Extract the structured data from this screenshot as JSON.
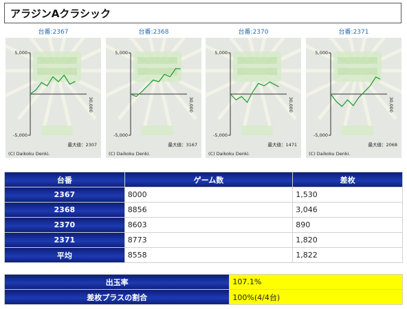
{
  "page_title": "アラジンAクラシック",
  "machines": [
    {
      "label": "台番:2367",
      "y_top": "5,000",
      "y_mid": "0",
      "y_bottom": "-5,000",
      "x_end": "30,000",
      "max_text": "最大値：2307",
      "copyright": "(C) Daikoku Denki.",
      "chart_data": {
        "type": "line",
        "ylim": [
          -5000,
          5000
        ],
        "xlim": [
          0,
          30000
        ],
        "x": [
          0,
          1000,
          2000,
          3000,
          4000,
          5000,
          6000,
          7000,
          8000
        ],
        "values": [
          0,
          500,
          1400,
          1000,
          2100,
          1500,
          2300,
          1200,
          1530
        ]
      }
    },
    {
      "label": "台番:2368",
      "y_top": "5,000",
      "y_mid": "0",
      "y_bottom": "-5,000",
      "x_end": "30,000",
      "max_text": "最大値：3167",
      "copyright": "(C) Daikoku Denki.",
      "chart_data": {
        "type": "line",
        "ylim": [
          -5000,
          5000
        ],
        "xlim": [
          0,
          30000
        ],
        "x": [
          0,
          1000,
          2000,
          3000,
          4000,
          5000,
          6000,
          7000,
          8000,
          8856
        ],
        "values": [
          0,
          -300,
          300,
          1000,
          1700,
          1500,
          2400,
          2100,
          3100,
          3046
        ]
      }
    },
    {
      "label": "台番:2370",
      "y_top": "5,000",
      "y_mid": "0",
      "y_bottom": "-5,000",
      "x_end": "30,000",
      "max_text": "最大値：1471",
      "copyright": "(C) Daikoku Denki.",
      "chart_data": {
        "type": "line",
        "ylim": [
          -5000,
          5000
        ],
        "xlim": [
          0,
          30000
        ],
        "x": [
          0,
          1000,
          2000,
          3000,
          4000,
          5000,
          6000,
          7000,
          8000,
          8603
        ],
        "values": [
          0,
          -700,
          -300,
          -1000,
          300,
          1300,
          1000,
          1471,
          1100,
          890
        ]
      }
    },
    {
      "label": "台番:2371",
      "y_top": "5,000",
      "y_mid": "0",
      "y_bottom": "-5,000",
      "x_end": "30,000",
      "max_text": "最大値：2068",
      "copyright": "(C) Daikoku Denki.",
      "chart_data": {
        "type": "line",
        "ylim": [
          -5000,
          5000
        ],
        "xlim": [
          0,
          30000
        ],
        "x": [
          0,
          1000,
          2000,
          3000,
          4000,
          5000,
          6000,
          7000,
          8000,
          8773
        ],
        "values": [
          0,
          -900,
          -1500,
          -700,
          -1400,
          -400,
          300,
          1000,
          2068,
          1820
        ]
      }
    }
  ],
  "table": {
    "headers": [
      "台番",
      "ゲーム数",
      "差枚"
    ],
    "rows": [
      [
        "2367",
        "8000",
        "1,530"
      ],
      [
        "2368",
        "8856",
        "3,046"
      ],
      [
        "2370",
        "8603",
        "890"
      ],
      [
        "2371",
        "8773",
        "1,820"
      ],
      [
        "平均",
        "8558",
        "1,822"
      ]
    ]
  },
  "summary": {
    "rows": [
      {
        "label": "出玉率",
        "value": "107.1%"
      },
      {
        "label": "差枚プラスの割合",
        "value": "100%(4/4台)"
      }
    ]
  },
  "colors": {
    "header_navy": "#1a2d9e",
    "highlight": "#ffff00",
    "line_green": "#1a9a2a",
    "label_blue": "#2a6cb0"
  }
}
